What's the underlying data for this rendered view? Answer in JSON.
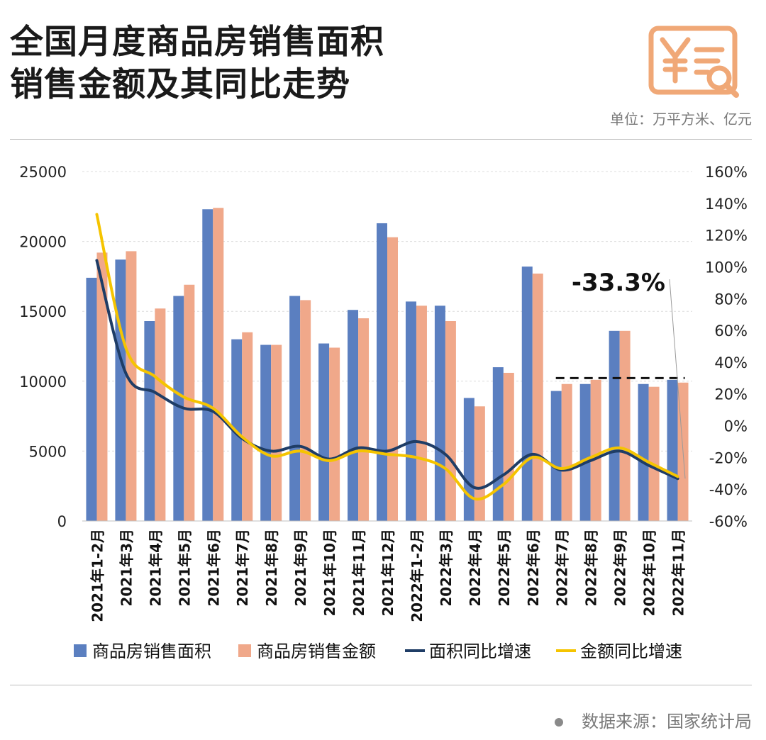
{
  "title_line1": "全国月度商品房销售面积",
  "title_line2": "销售金额及其同比走势",
  "unit_text": "单位：万平方米、亿元",
  "source_text": "数据来源：国家统计局",
  "colors": {
    "area_bar": "#5b7fc0",
    "amount_bar": "#f0a88a",
    "area_line": "#1f3d66",
    "amount_line": "#f5c400",
    "logo": "#f0a877"
  },
  "logo_icon": "yuan-invoice-search-icon",
  "chart_data": {
    "type": "bar",
    "categories": [
      "2021年1-2月",
      "2021年3月",
      "2021年4月",
      "2021年5月",
      "2021年6月",
      "2021年7月",
      "2021年8月",
      "2021年9月",
      "2021年10月",
      "2021年11月",
      "2021年12月",
      "2022年1-2月",
      "2022年3月",
      "2022年4月",
      "2022年5月",
      "2022年6月",
      "2022年7月",
      "2022年8月",
      "2022年9月",
      "2022年10月",
      "2022年11月"
    ],
    "series": [
      {
        "name": "商品房销售面积",
        "kind": "bar",
        "axis": "left",
        "values": [
          17400,
          18700,
          14300,
          16100,
          22300,
          13000,
          12600,
          16100,
          12700,
          15100,
          21300,
          15700,
          15400,
          8800,
          11000,
          18200,
          9300,
          9800,
          13600,
          9800,
          10100
        ]
      },
      {
        "name": "商品房销售金额",
        "kind": "bar",
        "axis": "left",
        "values": [
          19200,
          19300,
          15200,
          16900,
          22400,
          13500,
          12600,
          15800,
          12400,
          14500,
          20300,
          15400,
          14300,
          8200,
          10600,
          17700,
          9800,
          10100,
          13600,
          9600,
          9900
        ]
      },
      {
        "name": "面积同比增速",
        "kind": "line",
        "axis": "right",
        "values": [
          104,
          33,
          21,
          11,
          9,
          -8,
          -16,
          -13,
          -21,
          -14,
          -16,
          -10,
          -18,
          -39,
          -31,
          -18,
          -28,
          -22,
          -16,
          -25,
          -33.3
        ]
      },
      {
        "name": "金额同比增速",
        "kind": "line",
        "axis": "right",
        "values": [
          133,
          49,
          31,
          18,
          11,
          -7,
          -19,
          -16,
          -22,
          -16,
          -18,
          -20,
          -27,
          -46,
          -37,
          -20,
          -27,
          -20,
          -14,
          -23,
          -32
        ]
      }
    ],
    "y_left": {
      "range": [
        0,
        25000
      ],
      "ticks": [
        "0",
        "5000",
        "10000",
        "15000",
        "20000",
        "25000"
      ]
    },
    "y_right": {
      "range": [
        -60,
        160
      ],
      "ticks": [
        "-60%",
        "-40%",
        "-20%",
        "0%",
        "20%",
        "40%",
        "60%",
        "80%",
        "100%",
        "120%",
        "140%",
        "160%"
      ]
    },
    "grid": true,
    "legend_position": "bottom",
    "annotation": {
      "text": "-33.3%",
      "reference_level": 30
    }
  }
}
